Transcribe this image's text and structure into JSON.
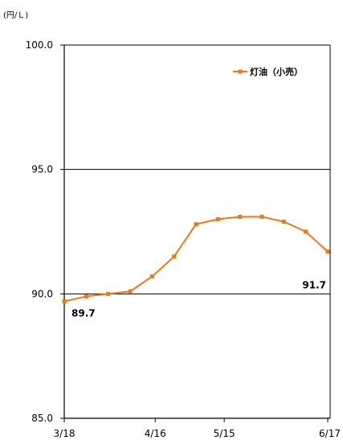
{
  "chart_data": {
    "type": "line",
    "unit_label": "(円/Ｌ)",
    "ylim": [
      85.0,
      100.0
    ],
    "y_ticks": [
      "100.0",
      "95.0",
      "90.0",
      "85.0"
    ],
    "x_ticks": [
      "3/18",
      "4/16",
      "5/15",
      "6/17"
    ],
    "series": [
      {
        "name": "灯油（小売）",
        "color": "#f07814",
        "x": [
          "3/18",
          "3/25",
          "4/1",
          "4/8",
          "4/15",
          "4/22",
          "5/6",
          "5/13",
          "5/20",
          "5/27",
          "6/3",
          "6/10",
          "6/17"
        ],
        "values": [
          89.7,
          89.9,
          90.0,
          90.1,
          90.7,
          91.5,
          92.8,
          93.0,
          93.1,
          93.1,
          92.9,
          92.5,
          91.7
        ]
      }
    ],
    "annotations": [
      {
        "text": "89.7",
        "point_index": 0
      },
      {
        "text": "91.7",
        "point_index": 12
      }
    ],
    "grid": "horizontal",
    "legend": "top-right"
  }
}
